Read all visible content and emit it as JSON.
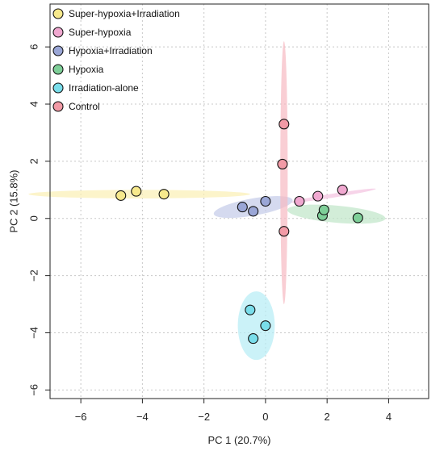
{
  "chart_data": {
    "type": "scatter",
    "xlabel": "PC 1 (20.7%)",
    "ylabel": "PC 2 (15.8%)",
    "xlim": [
      -7,
      5.3
    ],
    "ylim": [
      -6.3,
      7.5
    ],
    "xticks": [
      -6,
      -4,
      -2,
      0,
      2,
      4
    ],
    "yticks": [
      -6,
      -4,
      -2,
      0,
      2,
      4,
      6
    ],
    "tick_labels_x": [
      "−6",
      "−4",
      "−2",
      "0",
      "2",
      "4"
    ],
    "tick_labels_y": [
      "−6",
      "−4",
      "−2",
      "0",
      "2",
      "4",
      "6"
    ],
    "grid": true,
    "legend_position": "top-left",
    "series": [
      {
        "name": "Super-hypoxia+Irradiation",
        "color": "#F7E98C",
        "ellipse_color": "#FBF0B3",
        "points": [
          [
            -4.7,
            0.8
          ],
          [
            -4.2,
            0.95
          ],
          [
            -3.3,
            0.85
          ]
        ],
        "ellipse": {
          "cx": -4.1,
          "cy": 0.85,
          "rx": 3.6,
          "ry": 0.15,
          "angle": 0
        }
      },
      {
        "name": "Super-hypoxia",
        "color": "#F0A8D0",
        "ellipse_color": "#F3C2DF",
        "points": [
          [
            1.1,
            0.6
          ],
          [
            1.7,
            0.78
          ],
          [
            2.5,
            1.0
          ]
        ],
        "ellipse": {
          "cx": 2.2,
          "cy": 0.8,
          "rx": 1.4,
          "ry": 0.07,
          "angle": 9
        }
      },
      {
        "name": "Hypoxia+Irradiation",
        "color": "#9AA6D6",
        "ellipse_color": "#C3CAE8",
        "points": [
          [
            -0.75,
            0.4
          ],
          [
            -0.4,
            0.25
          ],
          [
            0,
            0.6
          ]
        ],
        "ellipse": {
          "cx": -0.4,
          "cy": 0.4,
          "rx": 1.3,
          "ry": 0.3,
          "angle": 10
        }
      },
      {
        "name": "Hypoxia",
        "color": "#7ECF98",
        "ellipse_color": "#BFE6C8",
        "points": [
          [
            1.85,
            0.1
          ],
          [
            1.9,
            0.3
          ],
          [
            3.0,
            0.02
          ]
        ],
        "ellipse": {
          "cx": 2.3,
          "cy": 0.15,
          "rx": 1.6,
          "ry": 0.3,
          "angle": -5
        }
      },
      {
        "name": "Irradiation-alone",
        "color": "#79DDEA",
        "ellipse_color": "#B5EDF5",
        "points": [
          [
            -0.5,
            -3.2
          ],
          [
            0,
            -3.75
          ],
          [
            -0.4,
            -4.2
          ]
        ],
        "ellipse": {
          "cx": -0.3,
          "cy": -3.75,
          "rx": 0.6,
          "ry": 1.2,
          "angle": 0
        }
      },
      {
        "name": "Control",
        "color": "#F29AA6",
        "ellipse_color": "#F6B9C2",
        "points": [
          [
            0.6,
            3.3
          ],
          [
            0.55,
            1.9
          ],
          [
            0.6,
            -0.45
          ]
        ],
        "ellipse": {
          "cx": 0.6,
          "cy": 1.6,
          "rx": 0.12,
          "ry": 4.6,
          "angle": 0
        }
      }
    ]
  }
}
